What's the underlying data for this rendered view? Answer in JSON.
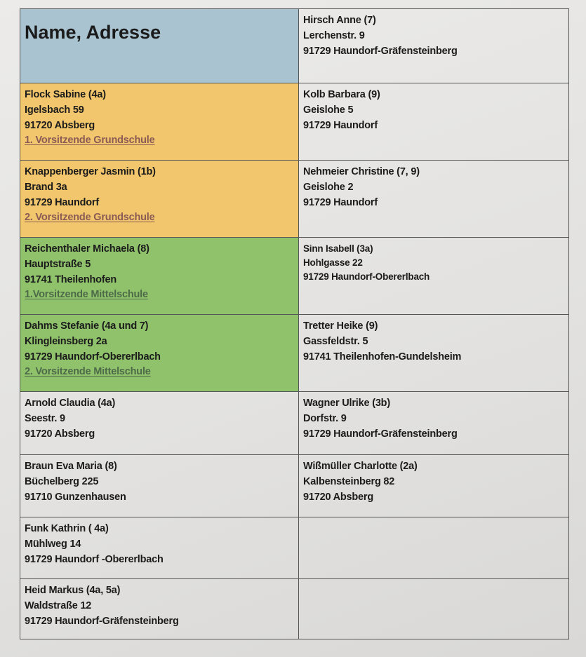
{
  "colors": {
    "header": "#a9c3d1",
    "grundschule": "#f2c66c",
    "mittelschule": "#90c26c",
    "role_grundschule": "#8a5a55",
    "role_mittelschule": "#4d6a48",
    "plain": "transparent"
  },
  "table": {
    "header": "Name, Adresse",
    "rows": [
      {
        "height": 106,
        "left": {
          "type": "header"
        },
        "right": {
          "lines": [
            "Hirsch Anne (7)",
            "Lerchenstr. 9",
            "91729 Haundorf-Gräfensteinberg"
          ]
        }
      },
      {
        "height": 110,
        "left": {
          "fill": "grundschule",
          "lines": [
            "Flock Sabine (4a)",
            "Igelsbach 59",
            "91720 Absberg"
          ],
          "role": "1. Vorsitzende Grundschule"
        },
        "right": {
          "lines": [
            "Kolb Barbara (9)",
            "Geislohe 5",
            "91729 Haundorf"
          ]
        }
      },
      {
        "height": 110,
        "left": {
          "fill": "grundschule",
          "lines": [
            "Knappenberger Jasmin (1b)",
            "Brand 3a",
            "91729 Haundorf"
          ],
          "role": "2. Vorsitzende Grundschule"
        },
        "right": {
          "lines": [
            "Nehmeier Christine (7, 9)",
            "Geislohe 2",
            "91729 Haundorf"
          ]
        }
      },
      {
        "height": 110,
        "left": {
          "fill": "mittelschule",
          "lines": [
            "Reichenthaler Michaela (8)",
            "Hauptstraße 5",
            "91741 Theilenhofen"
          ],
          "role": "1.Vorsitzende Mittelschule"
        },
        "right": {
          "small": true,
          "lines": [
            "Sinn Isabell (3a)",
            "Hohlgasse 22",
            "91729 Haundorf-Obererlbach"
          ]
        }
      },
      {
        "height": 110,
        "left": {
          "fill": "mittelschule",
          "lines": [
            "Dahms Stefanie (4a und 7)",
            "Klingleinsberg 2a",
            "91729 Haundorf-Obererlbach"
          ],
          "role": "2. Vorsitzende Mittelschule"
        },
        "right": {
          "lines": [
            "Tretter Heike (9)",
            "Gassfeldstr. 5",
            "91741 Theilenhofen-Gundelsheim"
          ]
        }
      },
      {
        "height": 90,
        "left": {
          "lines": [
            "Arnold Claudia (4a)",
            "Seestr. 9",
            "91720 Absberg"
          ]
        },
        "right": {
          "lines": [
            "Wagner Ulrike (3b)",
            "Dorfstr. 9",
            "91729 Haundorf-Gräfensteinberg"
          ]
        }
      },
      {
        "height": 89,
        "left": {
          "lines": [
            "Braun Eva Maria (8)",
            "Büchelberg 225",
            "91710 Gunzenhausen"
          ]
        },
        "right": {
          "lines": [
            "Wißmüller Charlotte (2a)",
            "Kalbensteinberg 82",
            "91720 Absberg"
          ]
        }
      },
      {
        "height": 88,
        "left": {
          "lines": [
            "Funk Kathrin ( 4a)",
            "Mühlweg 14",
            "91729 Haundorf -Obererlbach"
          ]
        },
        "right": {
          "lines": []
        }
      },
      {
        "height": 86,
        "left": {
          "lines": [
            "Heid Markus (4a, 5a)",
            "Waldstraße 12",
            "91729 Haundorf-Gräfensteinberg"
          ]
        },
        "right": {
          "lines": []
        }
      }
    ]
  }
}
